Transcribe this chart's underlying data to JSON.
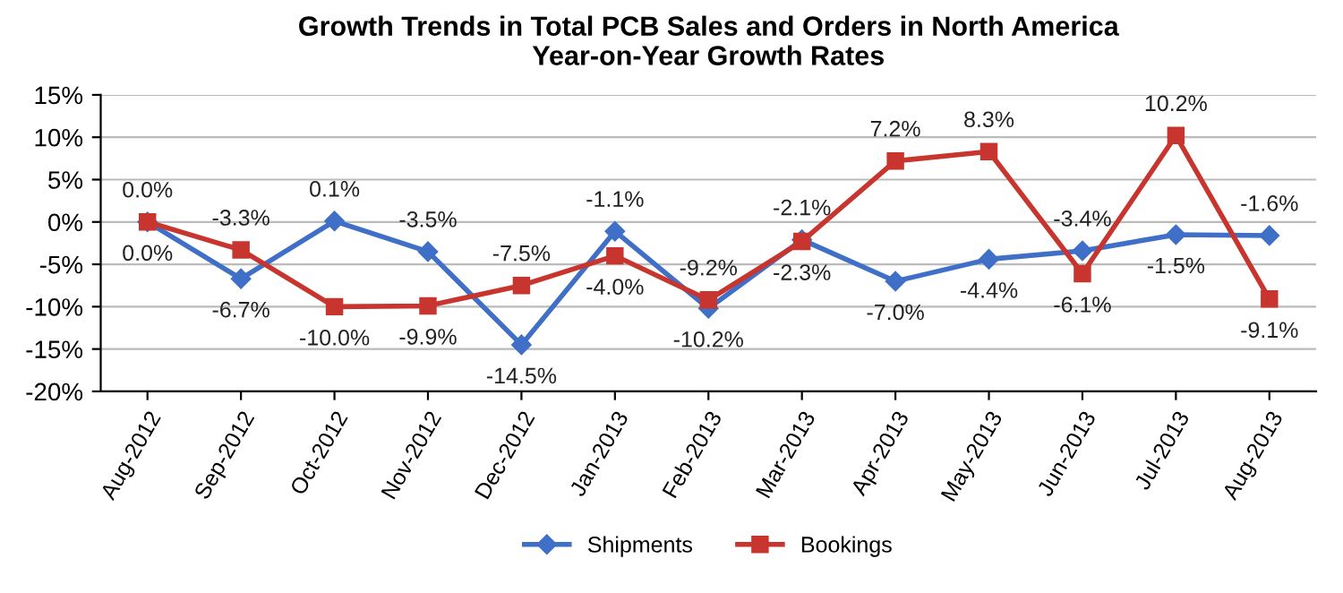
{
  "chart_data": {
    "type": "line",
    "title": "Growth Trends in Total PCB Sales and Orders in North America\nYear-on-Year Growth Rates",
    "categories": [
      "Aug-2012",
      "Sep-2012",
      "Oct-2012",
      "Nov-2012",
      "Dec-2012",
      "Jan-2013",
      "Feb-2013",
      "Mar-2013",
      "Apr-2013",
      "May-2013",
      "Jun-2013",
      "Jul-2013",
      "Aug-2013"
    ],
    "series": [
      {
        "name": "Shipments",
        "color": "#3f6fc6",
        "marker": "diamond",
        "values": [
          0.0,
          -6.7,
          0.1,
          -3.5,
          -14.5,
          -1.1,
          -10.2,
          -2.1,
          -7.0,
          -4.4,
          -3.4,
          -1.5,
          -1.6
        ],
        "value_labels": [
          "0.0%",
          "-6.7%",
          "0.1%",
          "-3.5%",
          "-14.5%",
          "-1.1%",
          "-10.2%",
          "-2.1%",
          "-7.0%",
          "-4.4%",
          "-3.4%",
          "-1.5%",
          "-1.6%"
        ]
      },
      {
        "name": "Bookings",
        "color": "#c8352f",
        "marker": "square",
        "values": [
          0.0,
          -3.3,
          -10.0,
          -9.9,
          -7.5,
          -4.0,
          -9.2,
          -2.3,
          7.2,
          8.3,
          -6.1,
          10.2,
          -9.1
        ],
        "value_labels": [
          "0.0%",
          "-3.3%",
          "-10.0%",
          "-9.9%",
          "-7.5%",
          "-4.0%",
          "-9.2%",
          "-2.3%",
          "7.2%",
          "8.3%",
          "-6.1%",
          "10.2%",
          "-9.1%"
        ]
      }
    ],
    "ylim": [
      -20,
      15
    ],
    "yticks": [
      {
        "value": -20,
        "label": "-20%"
      },
      {
        "value": -15,
        "label": "-15%"
      },
      {
        "value": -10,
        "label": "-10%"
      },
      {
        "value": -5,
        "label": "-5%"
      },
      {
        "value": 0,
        "label": "0%"
      },
      {
        "value": 5,
        "label": "5%"
      },
      {
        "value": 10,
        "label": "10%"
      },
      {
        "value": 15,
        "label": "15%"
      }
    ],
    "grid": "y",
    "legend": "bottom"
  }
}
